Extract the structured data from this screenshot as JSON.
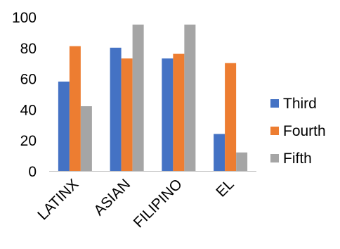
{
  "chart_data": {
    "type": "bar",
    "categories": [
      "LATINX",
      "ASIAN",
      "FILIPINO",
      "EL"
    ],
    "series": [
      {
        "name": "Third",
        "color": "#4472c4",
        "values": [
          58,
          80,
          73,
          24
        ]
      },
      {
        "name": "Fourth",
        "color": "#ed7d31",
        "values": [
          81,
          73,
          76,
          70
        ]
      },
      {
        "name": "Fifth",
        "color": "#a5a5a5",
        "values": [
          42,
          95,
          95,
          12
        ]
      }
    ],
    "yticks": [
      "0",
      "20",
      "40",
      "60",
      "80",
      "100"
    ],
    "ylim": [
      0,
      100
    ],
    "grid": false,
    "legend_position": "right",
    "xlabel": "",
    "ylabel": "",
    "title": ""
  }
}
